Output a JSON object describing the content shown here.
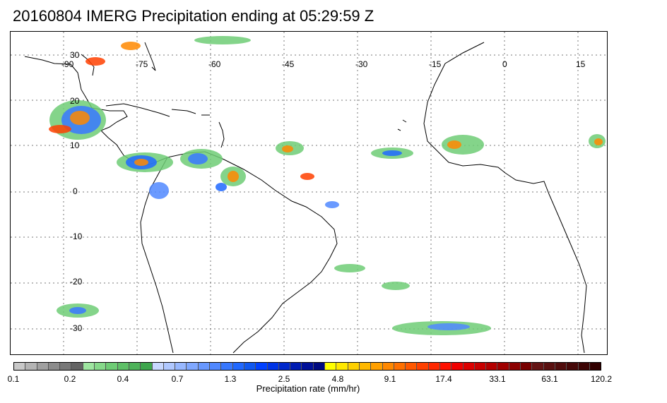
{
  "title": "20160804 IMERG Precipitation ending at 05:29:59 Z",
  "map": {
    "lon_labels": [
      "-90",
      "-75",
      "-60",
      "-45",
      "-30",
      "-15",
      "0",
      "15"
    ],
    "lat_labels": [
      "30",
      "20",
      "10",
      "0",
      "-10",
      "-20",
      "-30"
    ],
    "grid": true
  },
  "colorbar": {
    "label": "Precipitation rate (mm/hr)",
    "tick_labels": [
      "0.1",
      "0.2",
      "0.4",
      "0.7",
      "1.3",
      "2.5",
      "4.8",
      "9.1",
      "17.4",
      "33.1",
      "63.1",
      "120.2"
    ],
    "colors": [
      "#c8c8c8",
      "#b4b4b4",
      "#a0a0a0",
      "#8c8c8c",
      "#787878",
      "#646464",
      "#9ee6a0",
      "#86d98a",
      "#6ecc75",
      "#5ec067",
      "#4eb35a",
      "#3ea64d",
      "#c8d8ff",
      "#b0c8ff",
      "#98b8ff",
      "#80a8ff",
      "#6898ff",
      "#5088ff",
      "#3878ff",
      "#2068ff",
      "#1058f0",
      "#0040ff",
      "#0034e6",
      "#0028cc",
      "#001cb3",
      "#001099",
      "#000a80",
      "#ffff00",
      "#ffe800",
      "#ffd000",
      "#ffb800",
      "#ffa000",
      "#ff8800",
      "#ff7000",
      "#ff5800",
      "#ff4000",
      "#ff2800",
      "#ff1000",
      "#f00000",
      "#dc0000",
      "#c80000",
      "#b40000",
      "#a00000",
      "#8c0000",
      "#780000",
      "#641414",
      "#5a1010",
      "#500c0c",
      "#460808",
      "#3c0404",
      "#320000"
    ]
  }
}
